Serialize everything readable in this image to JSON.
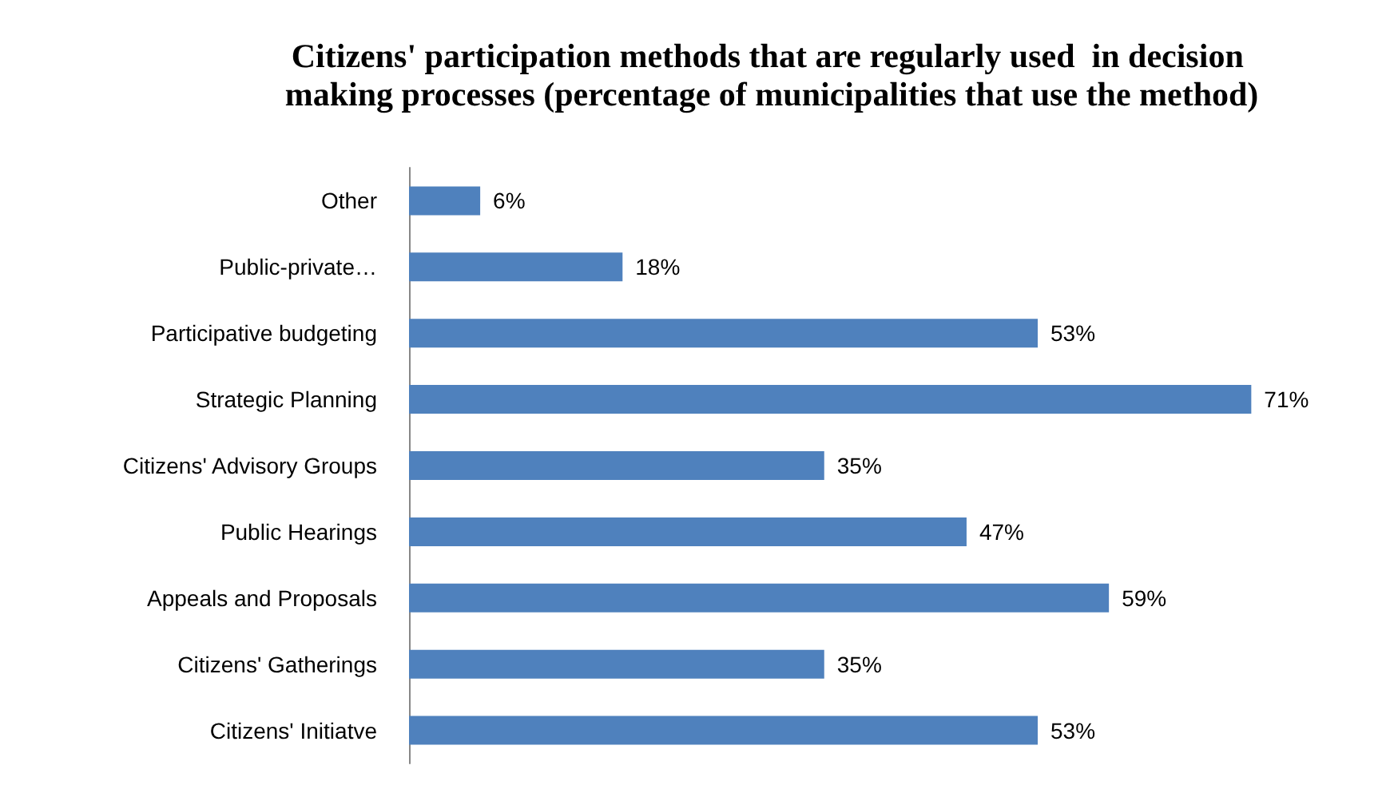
{
  "chart_data": {
    "type": "bar",
    "orientation": "horizontal",
    "title": "Citizens' participation methods that are regularly used  in decision making processes (percentage of municipalities that use the method)",
    "categories": [
      "Other",
      "Public-private…",
      "Participative budgeting",
      "Strategic Planning",
      "Citizens' Advisory Groups",
      "Public Hearings",
      "Appeals and Proposals",
      "Citizens' Gatherings",
      "Citizens' Initiatve"
    ],
    "values": [
      6,
      18,
      53,
      71,
      35,
      47,
      59,
      35,
      53
    ],
    "value_labels": [
      "6%",
      "18%",
      "53%",
      "71%",
      "35%",
      "47%",
      "59%",
      "35%",
      "53%"
    ],
    "color": "#4f81bd",
    "tick_labels": "y"
  }
}
